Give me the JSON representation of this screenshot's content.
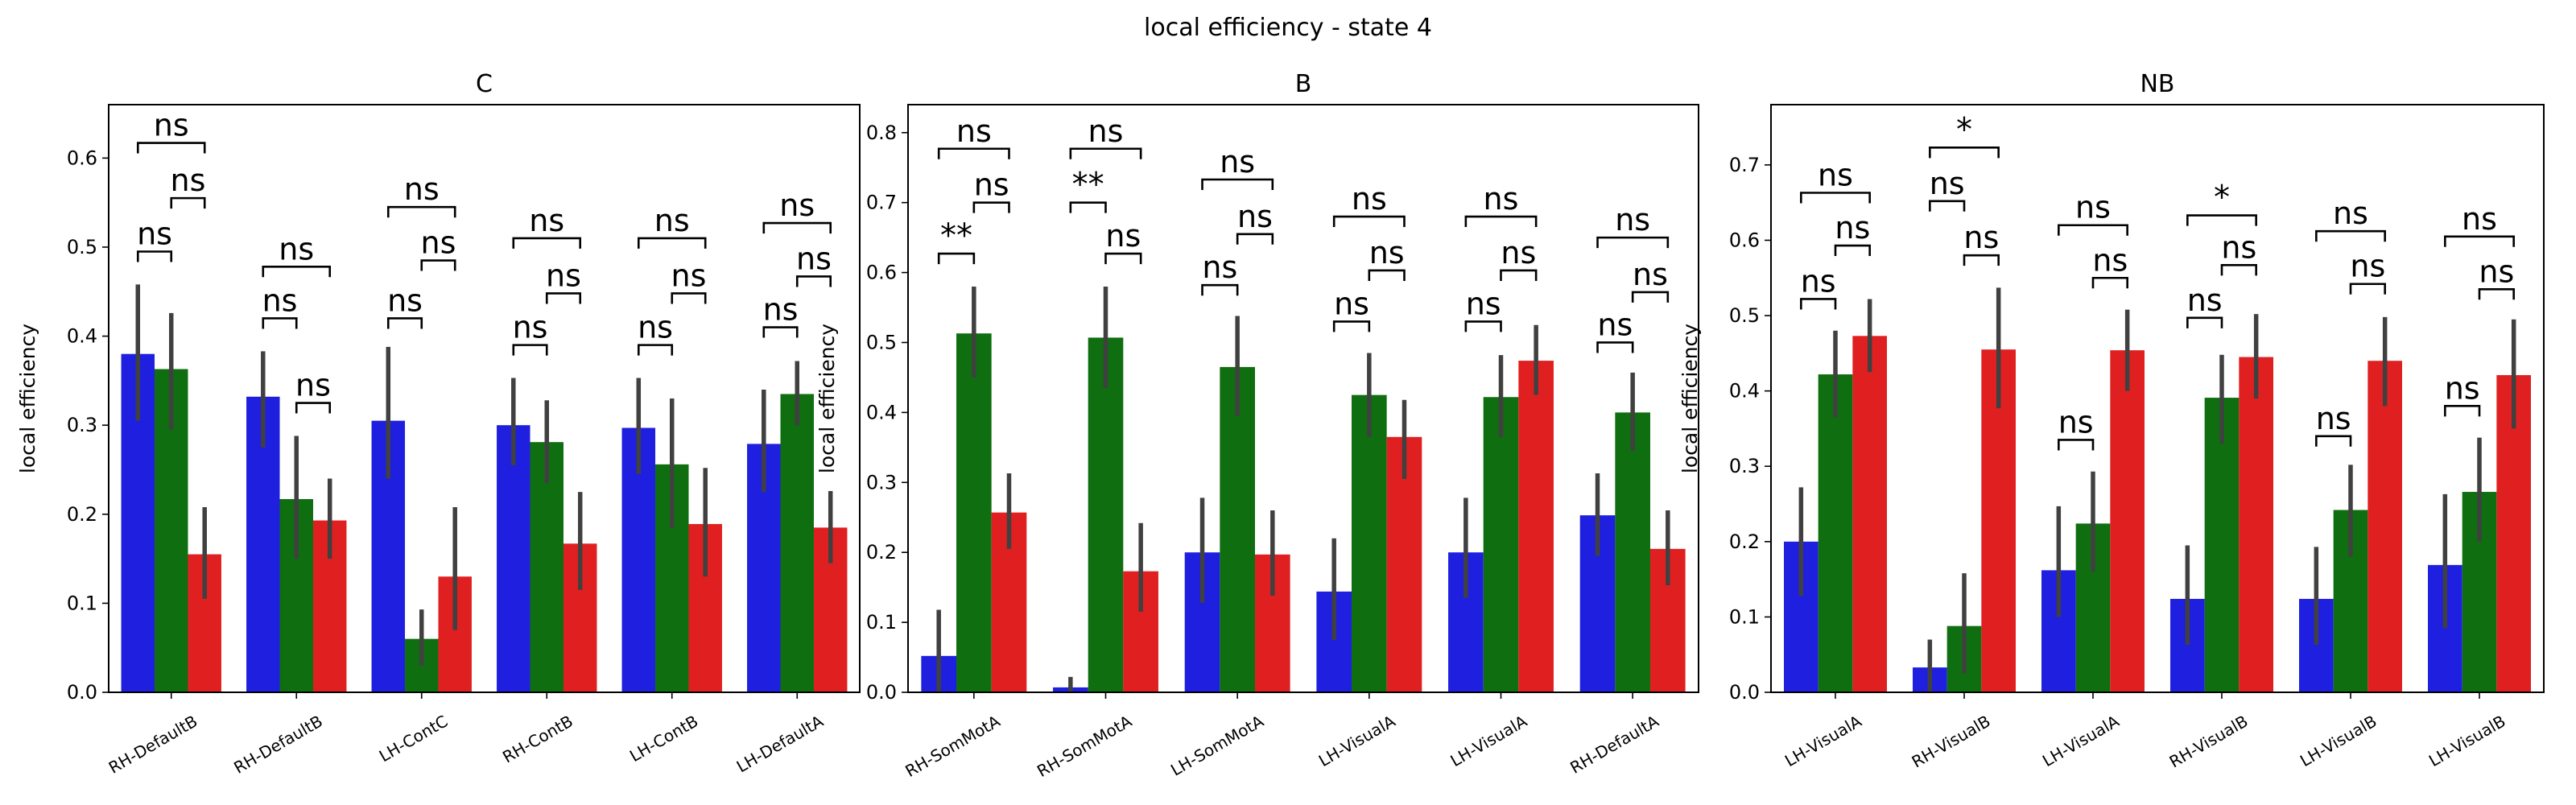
{
  "figure": {
    "suptitle": "local efficiency - state 4"
  },
  "colors": {
    "blue": "#1f1fe0",
    "green": "#0f6e0f",
    "red": "#e02020",
    "err": "#404040"
  },
  "chart_data": [
    {
      "type": "bar",
      "title": "C",
      "ylabel": "local efficiency",
      "ylim": [
        0,
        0.66
      ],
      "yticks": [
        0.0,
        0.1,
        0.2,
        0.3,
        0.4,
        0.5,
        0.6
      ],
      "categories": [
        "RH-DefaultB",
        "RH-DefaultB",
        "LH-ContC",
        "RH-ContB",
        "LH-ContB",
        "LH-DefaultA"
      ],
      "series": [
        {
          "color": "blue",
          "values": [
            0.38,
            0.332,
            0.305,
            0.3,
            0.297,
            0.279
          ],
          "err_low": [
            0.305,
            0.275,
            0.24,
            0.255,
            0.245,
            0.225
          ],
          "err_high": [
            0.458,
            0.383,
            0.388,
            0.353,
            0.353,
            0.34
          ]
        },
        {
          "color": "green",
          "values": [
            0.363,
            0.217,
            0.06,
            0.281,
            0.256,
            0.335
          ],
          "err_low": [
            0.295,
            0.15,
            0.03,
            0.235,
            0.185,
            0.3
          ],
          "err_high": [
            0.426,
            0.288,
            0.093,
            0.328,
            0.33,
            0.372
          ]
        },
        {
          "color": "red",
          "values": [
            0.155,
            0.193,
            0.13,
            0.167,
            0.189,
            0.185
          ],
          "err_low": [
            0.105,
            0.15,
            0.07,
            0.115,
            0.13,
            0.145
          ],
          "err_high": [
            0.208,
            0.24,
            0.208,
            0.225,
            0.252,
            0.226
          ]
        }
      ],
      "annotations": [
        {
          "from": 0,
          "to": 1,
          "group": 0,
          "y": 0.495,
          "text": "ns"
        },
        {
          "from": 1,
          "to": 2,
          "group": 0,
          "y": 0.555,
          "text": "ns"
        },
        {
          "from": 0,
          "to": 2,
          "group": 0,
          "y": 0.617,
          "text": "ns"
        },
        {
          "from": 0,
          "to": 1,
          "group": 1,
          "y": 0.42,
          "text": "ns"
        },
        {
          "from": 1,
          "to": 2,
          "group": 1,
          "y": 0.325,
          "text": "ns"
        },
        {
          "from": 0,
          "to": 2,
          "group": 1,
          "y": 0.478,
          "text": "ns"
        },
        {
          "from": 0,
          "to": 1,
          "group": 2,
          "y": 0.42,
          "text": "ns"
        },
        {
          "from": 1,
          "to": 2,
          "group": 2,
          "y": 0.485,
          "text": "ns"
        },
        {
          "from": 0,
          "to": 2,
          "group": 2,
          "y": 0.545,
          "text": "ns"
        },
        {
          "from": 0,
          "to": 1,
          "group": 3,
          "y": 0.39,
          "text": "ns"
        },
        {
          "from": 1,
          "to": 2,
          "group": 3,
          "y": 0.448,
          "text": "ns"
        },
        {
          "from": 0,
          "to": 2,
          "group": 3,
          "y": 0.51,
          "text": "ns"
        },
        {
          "from": 0,
          "to": 1,
          "group": 4,
          "y": 0.39,
          "text": "ns"
        },
        {
          "from": 1,
          "to": 2,
          "group": 4,
          "y": 0.448,
          "text": "ns"
        },
        {
          "from": 0,
          "to": 2,
          "group": 4,
          "y": 0.51,
          "text": "ns"
        },
        {
          "from": 0,
          "to": 1,
          "group": 5,
          "y": 0.41,
          "text": "ns"
        },
        {
          "from": 1,
          "to": 2,
          "group": 5,
          "y": 0.467,
          "text": "ns"
        },
        {
          "from": 0,
          "to": 2,
          "group": 5,
          "y": 0.527,
          "text": "ns"
        }
      ]
    },
    {
      "type": "bar",
      "title": "B",
      "ylabel": "local efficiency",
      "ylim": [
        0,
        0.84
      ],
      "yticks": [
        0.0,
        0.1,
        0.2,
        0.3,
        0.4,
        0.5,
        0.6,
        0.7,
        0.8
      ],
      "categories": [
        "RH-SomMotA",
        "RH-SomMotA",
        "LH-SomMotA",
        "LH-VisualA",
        "LH-VisualA",
        "RH-DefaultA"
      ],
      "series": [
        {
          "color": "blue",
          "values": [
            0.052,
            0.007,
            0.2,
            0.144,
            0.2,
            0.253
          ],
          "err_low": [
            0.0,
            0.0,
            0.128,
            0.075,
            0.135,
            0.195
          ],
          "err_high": [
            0.118,
            0.022,
            0.278,
            0.22,
            0.278,
            0.313
          ]
        },
        {
          "color": "green",
          "values": [
            0.513,
            0.507,
            0.465,
            0.425,
            0.422,
            0.4
          ],
          "err_low": [
            0.45,
            0.435,
            0.395,
            0.365,
            0.365,
            0.345
          ],
          "err_high": [
            0.58,
            0.58,
            0.538,
            0.485,
            0.482,
            0.457
          ]
        },
        {
          "color": "red",
          "values": [
            0.257,
            0.173,
            0.197,
            0.365,
            0.474,
            0.205
          ],
          "err_low": [
            0.205,
            0.115,
            0.138,
            0.305,
            0.425,
            0.153
          ],
          "err_high": [
            0.313,
            0.242,
            0.26,
            0.418,
            0.525,
            0.26
          ]
        }
      ],
      "annotations": [
        {
          "from": 0,
          "to": 1,
          "group": 0,
          "y": 0.627,
          "text": "**"
        },
        {
          "from": 1,
          "to": 2,
          "group": 0,
          "y": 0.7,
          "text": "ns"
        },
        {
          "from": 0,
          "to": 2,
          "group": 0,
          "y": 0.777,
          "text": "ns"
        },
        {
          "from": 0,
          "to": 1,
          "group": 1,
          "y": 0.7,
          "text": "**"
        },
        {
          "from": 1,
          "to": 2,
          "group": 1,
          "y": 0.627,
          "text": "ns"
        },
        {
          "from": 0,
          "to": 2,
          "group": 1,
          "y": 0.777,
          "text": "ns"
        },
        {
          "from": 0,
          "to": 1,
          "group": 2,
          "y": 0.582,
          "text": "ns"
        },
        {
          "from": 1,
          "to": 2,
          "group": 2,
          "y": 0.655,
          "text": "ns"
        },
        {
          "from": 0,
          "to": 2,
          "group": 2,
          "y": 0.733,
          "text": "ns"
        },
        {
          "from": 0,
          "to": 1,
          "group": 3,
          "y": 0.53,
          "text": "ns"
        },
        {
          "from": 1,
          "to": 2,
          "group": 3,
          "y": 0.603,
          "text": "ns"
        },
        {
          "from": 0,
          "to": 2,
          "group": 3,
          "y": 0.68,
          "text": "ns"
        },
        {
          "from": 0,
          "to": 1,
          "group": 4,
          "y": 0.53,
          "text": "ns"
        },
        {
          "from": 1,
          "to": 2,
          "group": 4,
          "y": 0.603,
          "text": "ns"
        },
        {
          "from": 0,
          "to": 2,
          "group": 4,
          "y": 0.68,
          "text": "ns"
        },
        {
          "from": 0,
          "to": 1,
          "group": 5,
          "y": 0.5,
          "text": "ns"
        },
        {
          "from": 1,
          "to": 2,
          "group": 5,
          "y": 0.572,
          "text": "ns"
        },
        {
          "from": 0,
          "to": 2,
          "group": 5,
          "y": 0.65,
          "text": "ns"
        }
      ]
    },
    {
      "type": "bar",
      "title": "NB",
      "ylabel": "local efficiency",
      "ylim": [
        0,
        0.78
      ],
      "yticks": [
        0.0,
        0.1,
        0.2,
        0.3,
        0.4,
        0.5,
        0.6,
        0.7
      ],
      "categories": [
        "LH-VisualA",
        "RH-VisualB",
        "LH-VisualA",
        "RH-VisualB",
        "LH-VisualB",
        "LH-VisualB"
      ],
      "series": [
        {
          "color": "blue",
          "values": [
            0.2,
            0.033,
            0.162,
            0.124,
            0.124,
            0.169
          ],
          "err_low": [
            0.128,
            0.0,
            0.1,
            0.063,
            0.063,
            0.085
          ],
          "err_high": [
            0.272,
            0.07,
            0.247,
            0.195,
            0.193,
            0.263
          ]
        },
        {
          "color": "green",
          "values": [
            0.422,
            0.088,
            0.224,
            0.391,
            0.242,
            0.266
          ],
          "err_low": [
            0.365,
            0.025,
            0.16,
            0.33,
            0.18,
            0.2
          ],
          "err_high": [
            0.48,
            0.158,
            0.293,
            0.448,
            0.302,
            0.338
          ]
        },
        {
          "color": "red",
          "values": [
            0.473,
            0.455,
            0.454,
            0.445,
            0.44,
            0.421
          ],
          "err_low": [
            0.425,
            0.377,
            0.4,
            0.39,
            0.38,
            0.35
          ],
          "err_high": [
            0.522,
            0.537,
            0.508,
            0.502,
            0.498,
            0.495
          ]
        }
      ],
      "annotations": [
        {
          "from": 0,
          "to": 1,
          "group": 0,
          "y": 0.522,
          "text": "ns"
        },
        {
          "from": 1,
          "to": 2,
          "group": 0,
          "y": 0.593,
          "text": "ns"
        },
        {
          "from": 0,
          "to": 2,
          "group": 0,
          "y": 0.663,
          "text": "ns"
        },
        {
          "from": 0,
          "to": 1,
          "group": 1,
          "y": 0.652,
          "text": "ns"
        },
        {
          "from": 1,
          "to": 2,
          "group": 1,
          "y": 0.58,
          "text": "ns"
        },
        {
          "from": 0,
          "to": 2,
          "group": 1,
          "y": 0.723,
          "text": "*"
        },
        {
          "from": 0,
          "to": 1,
          "group": 2,
          "y": 0.335,
          "text": "ns"
        },
        {
          "from": 1,
          "to": 2,
          "group": 2,
          "y": 0.55,
          "text": "ns"
        },
        {
          "from": 0,
          "to": 2,
          "group": 2,
          "y": 0.62,
          "text": "ns"
        },
        {
          "from": 0,
          "to": 1,
          "group": 3,
          "y": 0.497,
          "text": "ns"
        },
        {
          "from": 1,
          "to": 2,
          "group": 3,
          "y": 0.567,
          "text": "ns"
        },
        {
          "from": 0,
          "to": 2,
          "group": 3,
          "y": 0.633,
          "text": "*"
        },
        {
          "from": 0,
          "to": 1,
          "group": 4,
          "y": 0.34,
          "text": "ns"
        },
        {
          "from": 1,
          "to": 2,
          "group": 4,
          "y": 0.542,
          "text": "ns"
        },
        {
          "from": 0,
          "to": 2,
          "group": 4,
          "y": 0.612,
          "text": "ns"
        },
        {
          "from": 0,
          "to": 1,
          "group": 5,
          "y": 0.38,
          "text": "ns"
        },
        {
          "from": 1,
          "to": 2,
          "group": 5,
          "y": 0.535,
          "text": "ns"
        },
        {
          "from": 0,
          "to": 2,
          "group": 5,
          "y": 0.605,
          "text": "ns"
        }
      ]
    }
  ]
}
